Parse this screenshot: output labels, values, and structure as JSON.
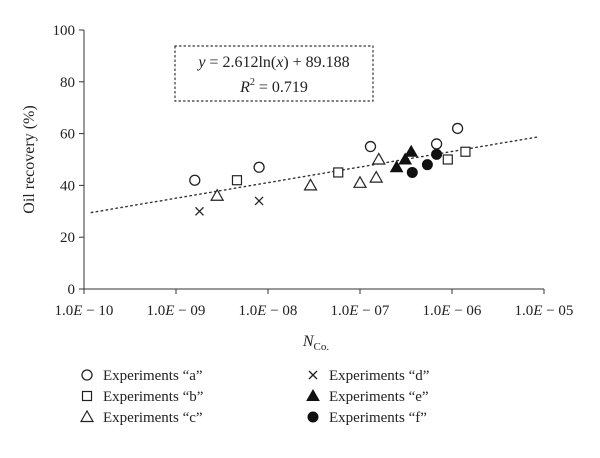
{
  "chart_data": {
    "type": "scatter",
    "title": "",
    "xlabel": {
      "base": "N",
      "sub": "Co."
    },
    "ylabel": "Oil recovery (%)",
    "xscale": "log",
    "xlim": [
      1e-10,
      1e-05
    ],
    "ylim": [
      0,
      100
    ],
    "xticks": [
      {
        "value": 1e-10,
        "label_prefix": "1.0",
        "label_e": "E",
        "label_suffix": " − 10"
      },
      {
        "value": 1e-09,
        "label_prefix": "1.0",
        "label_e": "E",
        "label_suffix": " − 09"
      },
      {
        "value": 1e-08,
        "label_prefix": "1.0",
        "label_e": "E",
        "label_suffix": " − 08"
      },
      {
        "value": 1e-07,
        "label_prefix": "1.0",
        "label_e": "E",
        "label_suffix": " − 07"
      },
      {
        "value": 1e-06,
        "label_prefix": "1.0",
        "label_e": "E",
        "label_suffix": " − 06"
      },
      {
        "value": 1e-05,
        "label_prefix": "1.0",
        "label_e": "E",
        "label_suffix": " − 05"
      }
    ],
    "yticks": [
      0,
      20,
      40,
      60,
      80,
      100
    ],
    "grid": false,
    "legend_position": "bottom",
    "series": [
      {
        "name": "Experiments “a”",
        "marker": "circle-open",
        "x": [
          1.6e-09,
          8e-09,
          1.3e-07,
          6.8e-07,
          1.15e-06
        ],
        "y": [
          42,
          47,
          55,
          56,
          62
        ]
      },
      {
        "name": "Experiments “b”",
        "marker": "square-open",
        "x": [
          4.6e-09,
          5.8e-08,
          9e-07,
          1.4e-06
        ],
        "y": [
          42,
          45,
          50,
          53
        ]
      },
      {
        "name": "Experiments “c”",
        "marker": "triangle-open",
        "x": [
          2.8e-09,
          2.9e-08,
          1e-07,
          1.5e-07,
          1.6e-07
        ],
        "y": [
          36,
          40,
          41,
          43,
          50
        ]
      },
      {
        "name": "Experiments “d”",
        "marker": "x",
        "x": [
          1.8e-09,
          8e-09
        ],
        "y": [
          30,
          34
        ]
      },
      {
        "name": "Experiments “e”",
        "marker": "triangle-filled",
        "x": [
          2.5e-07,
          3.1e-07,
          3.6e-07
        ],
        "y": [
          47,
          50,
          53
        ]
      },
      {
        "name": "Experiments “f”",
        "marker": "circle-filled",
        "x": [
          3.7e-07,
          5.4e-07,
          6.8e-07
        ],
        "y": [
          45,
          48,
          52
        ]
      }
    ],
    "trendline": {
      "type": "logarithmic",
      "a": 2.612,
      "b": 89.188,
      "x_range": [
        1.2e-10,
        9e-06
      ],
      "style": "dotted"
    },
    "annotation": {
      "equation": {
        "y": "y",
        "rest": " = 2.612ln(",
        "x": "x",
        "tail": ") + 89.188"
      },
      "r2": {
        "r": "R",
        "sup": "2",
        "tail": " = 0.719"
      },
      "border": "dotted"
    }
  }
}
